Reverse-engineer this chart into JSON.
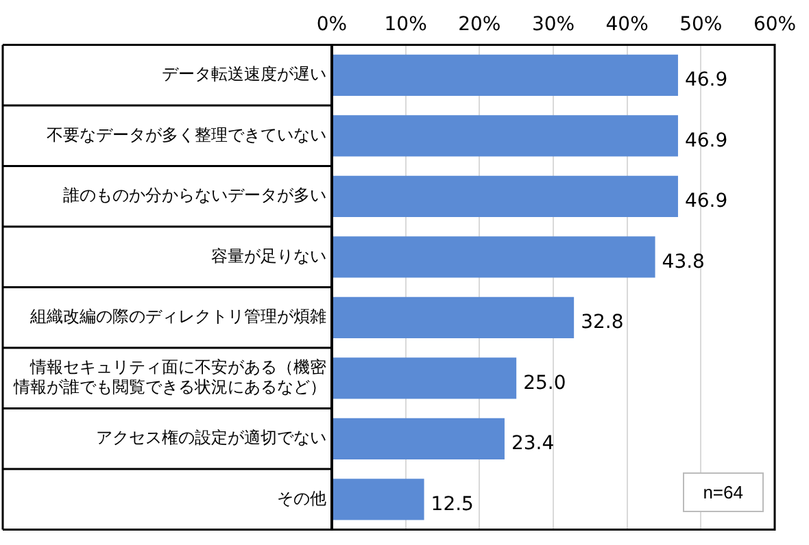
{
  "chart_data": {
    "type": "bar",
    "orientation": "horizontal",
    "categories": [
      "データ転送速度が遅い",
      "不要なデータが多く整理できていない",
      "誰のものか分からないデータが多い",
      "容量が足りない",
      "組織改編の際のディレクトリ管理が煩雑",
      "情報セキュリティ面に不安がある（機密情報が誰でも閲覧できる状況にあるなど）",
      "アクセス権の設定が適切でない",
      "その他"
    ],
    "values": [
      46.9,
      46.9,
      46.9,
      43.8,
      32.8,
      25.0,
      23.4,
      12.5
    ],
    "color": "#5b8bd5",
    "xlim": [
      0,
      60
    ],
    "xticks": [
      {
        "value": 0,
        "label": "0%"
      },
      {
        "value": 10,
        "label": "10%"
      },
      {
        "value": 20,
        "label": "20%"
      },
      {
        "value": 30,
        "label": "30%"
      },
      {
        "value": 40,
        "label": "40%"
      },
      {
        "value": 50,
        "label": "50%"
      },
      {
        "value": 60,
        "label": "60%"
      }
    ],
    "value_labels": [
      "46.9",
      "46.9",
      "46.9",
      "43.8",
      "32.8",
      "25.0",
      "23.4",
      "12.5"
    ],
    "grid": "x",
    "legend": false,
    "annotations": [
      "n=64"
    ]
  }
}
